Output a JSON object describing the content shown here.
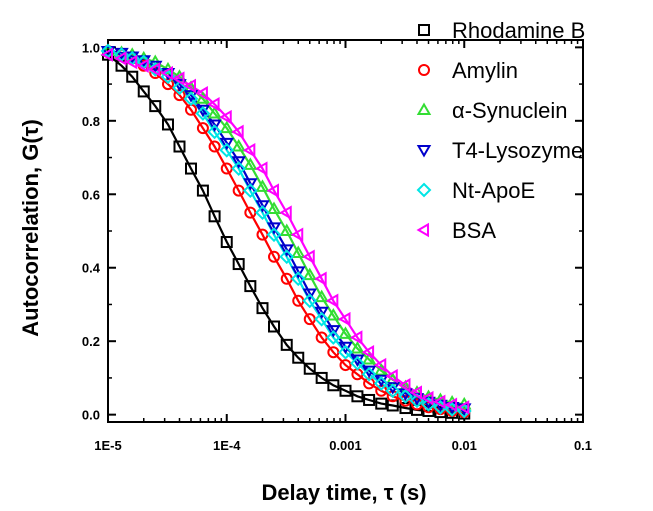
{
  "chart_data": {
    "type": "scatter",
    "title": "",
    "xlabel": "Delay time, τ (s)",
    "ylabel": "Autocorrelation, G(τ)",
    "xscale": "log",
    "xlim": [
      1e-05,
      0.1
    ],
    "ylim": [
      -0.02,
      1.02
    ],
    "x_ticks": [
      1e-05,
      0.0001,
      0.001,
      0.01,
      0.1
    ],
    "x_tick_labels": [
      "1E-5",
      "1E-4",
      "0.001",
      "0.01",
      "0.1"
    ],
    "y_ticks": [
      0.0,
      0.2,
      0.4,
      0.6,
      0.8,
      1.0
    ],
    "y_tick_labels": [
      "0.0",
      "0.2",
      "0.4",
      "0.6",
      "0.8",
      "1.0"
    ],
    "grid": false,
    "legend_position": "top-right",
    "series": [
      {
        "name": "Rhodamine B",
        "color": "#000000",
        "marker": "square",
        "x": [
          1e-05,
          1.3e-05,
          1.6e-05,
          2e-05,
          2.5e-05,
          3.2e-05,
          4e-05,
          5e-05,
          6.3e-05,
          7.9e-05,
          0.0001,
          0.000126,
          0.000158,
          0.0002,
          0.00025,
          0.00032,
          0.0004,
          0.0005,
          0.00063,
          0.00079,
          0.001,
          0.00126,
          0.00158,
          0.002,
          0.0025,
          0.0032,
          0.004,
          0.005,
          0.0063,
          0.0079,
          0.01
        ],
        "y": [
          0.98,
          0.95,
          0.92,
          0.88,
          0.84,
          0.79,
          0.73,
          0.67,
          0.61,
          0.54,
          0.47,
          0.41,
          0.35,
          0.29,
          0.24,
          0.19,
          0.155,
          0.125,
          0.1,
          0.08,
          0.065,
          0.05,
          0.04,
          0.03,
          0.025,
          0.018,
          0.013,
          0.01,
          0.007,
          0.005,
          0.003
        ]
      },
      {
        "name": "Amylin",
        "color": "#ff0000",
        "marker": "circle",
        "x": [
          1e-05,
          1.3e-05,
          1.6e-05,
          2e-05,
          2.5e-05,
          3.2e-05,
          4e-05,
          5e-05,
          6.3e-05,
          7.9e-05,
          0.0001,
          0.000126,
          0.000158,
          0.0002,
          0.00025,
          0.00032,
          0.0004,
          0.0005,
          0.00063,
          0.00079,
          0.001,
          0.00126,
          0.00158,
          0.002,
          0.0025,
          0.0032,
          0.004,
          0.005,
          0.0063,
          0.0079,
          0.01
        ],
        "y": [
          0.99,
          0.98,
          0.97,
          0.95,
          0.93,
          0.9,
          0.87,
          0.83,
          0.78,
          0.73,
          0.67,
          0.61,
          0.55,
          0.49,
          0.43,
          0.37,
          0.31,
          0.26,
          0.21,
          0.17,
          0.135,
          0.11,
          0.085,
          0.065,
          0.05,
          0.038,
          0.028,
          0.02,
          0.015,
          0.01,
          0.007
        ]
      },
      {
        "name": "α-Synuclein",
        "color": "#33dd33",
        "marker": "triangle-up",
        "x": [
          1e-05,
          1.3e-05,
          1.6e-05,
          2e-05,
          2.5e-05,
          3.2e-05,
          4e-05,
          5e-05,
          6.3e-05,
          7.9e-05,
          0.0001,
          0.000126,
          0.000158,
          0.0002,
          0.00025,
          0.00032,
          0.0004,
          0.0005,
          0.00063,
          0.00079,
          0.001,
          0.00126,
          0.00158,
          0.002,
          0.0025,
          0.0032,
          0.004,
          0.005,
          0.0063,
          0.0079,
          0.01
        ],
        "y": [
          0.99,
          0.985,
          0.98,
          0.97,
          0.96,
          0.94,
          0.92,
          0.89,
          0.86,
          0.82,
          0.78,
          0.73,
          0.68,
          0.62,
          0.56,
          0.5,
          0.44,
          0.38,
          0.32,
          0.27,
          0.22,
          0.18,
          0.15,
          0.12,
          0.095,
          0.075,
          0.06,
          0.048,
          0.04,
          0.033,
          0.028
        ]
      },
      {
        "name": "T4-Lysozyme",
        "color": "#0000cc",
        "marker": "triangle-down",
        "x": [
          1e-05,
          1.3e-05,
          1.6e-05,
          2e-05,
          2.5e-05,
          3.2e-05,
          4e-05,
          5e-05,
          6.3e-05,
          7.9e-05,
          0.0001,
          0.000126,
          0.000158,
          0.0002,
          0.00025,
          0.00032,
          0.0004,
          0.0005,
          0.00063,
          0.00079,
          0.001,
          0.00126,
          0.00158,
          0.002,
          0.0025,
          0.0032,
          0.004,
          0.005,
          0.0063,
          0.0079,
          0.01
        ],
        "y": [
          0.99,
          0.985,
          0.975,
          0.965,
          0.95,
          0.93,
          0.9,
          0.87,
          0.83,
          0.79,
          0.74,
          0.69,
          0.63,
          0.57,
          0.51,
          0.45,
          0.39,
          0.33,
          0.28,
          0.23,
          0.185,
          0.15,
          0.12,
          0.095,
          0.075,
          0.058,
          0.045,
          0.035,
          0.027,
          0.021,
          0.017
        ]
      },
      {
        "name": "Nt-ApoE",
        "color": "#00e5e5",
        "marker": "diamond",
        "x": [
          1e-05,
          1.3e-05,
          1.6e-05,
          2e-05,
          2.5e-05,
          3.2e-05,
          4e-05,
          5e-05,
          6.3e-05,
          7.9e-05,
          0.0001,
          0.000126,
          0.000158,
          0.0002,
          0.00025,
          0.00032,
          0.0004,
          0.0005,
          0.00063,
          0.00079,
          0.001,
          0.00126,
          0.00158,
          0.002,
          0.0025,
          0.0032,
          0.004,
          0.005,
          0.0063,
          0.0079,
          0.01
        ],
        "y": [
          0.99,
          0.98,
          0.97,
          0.96,
          0.94,
          0.92,
          0.89,
          0.86,
          0.82,
          0.77,
          0.72,
          0.67,
          0.61,
          0.55,
          0.49,
          0.43,
          0.37,
          0.31,
          0.26,
          0.21,
          0.17,
          0.14,
          0.11,
          0.085,
          0.065,
          0.05,
          0.038,
          0.028,
          0.02,
          0.014,
          0.01
        ]
      },
      {
        "name": "BSA",
        "color": "#ff00ff",
        "marker": "triangle-left",
        "x": [
          1e-05,
          1.3e-05,
          1.6e-05,
          2e-05,
          2.5e-05,
          3.2e-05,
          4e-05,
          5e-05,
          6.3e-05,
          7.9e-05,
          0.0001,
          0.000126,
          0.000158,
          0.0002,
          0.00025,
          0.00032,
          0.0004,
          0.0005,
          0.00063,
          0.00079,
          0.001,
          0.00126,
          0.00158,
          0.002,
          0.0025,
          0.0032,
          0.004,
          0.005,
          0.0063,
          0.0079,
          0.01
        ],
        "y": [
          0.98,
          0.97,
          0.96,
          0.95,
          0.94,
          0.93,
          0.915,
          0.895,
          0.875,
          0.845,
          0.81,
          0.77,
          0.72,
          0.67,
          0.61,
          0.55,
          0.49,
          0.43,
          0.37,
          0.31,
          0.26,
          0.21,
          0.17,
          0.135,
          0.105,
          0.08,
          0.06,
          0.045,
          0.035,
          0.027,
          0.02
        ]
      }
    ]
  }
}
